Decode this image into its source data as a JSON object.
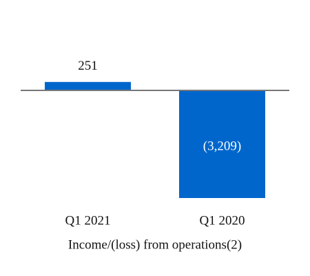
{
  "chart_data": {
    "type": "bar",
    "title": "Income/(loss) from operations(2)",
    "categories": [
      "Q1 2021",
      "Q1 2020"
    ],
    "values": [
      251,
      -3209
    ],
    "value_labels": [
      "251",
      "(3,209)"
    ],
    "color": "#0066cc"
  }
}
